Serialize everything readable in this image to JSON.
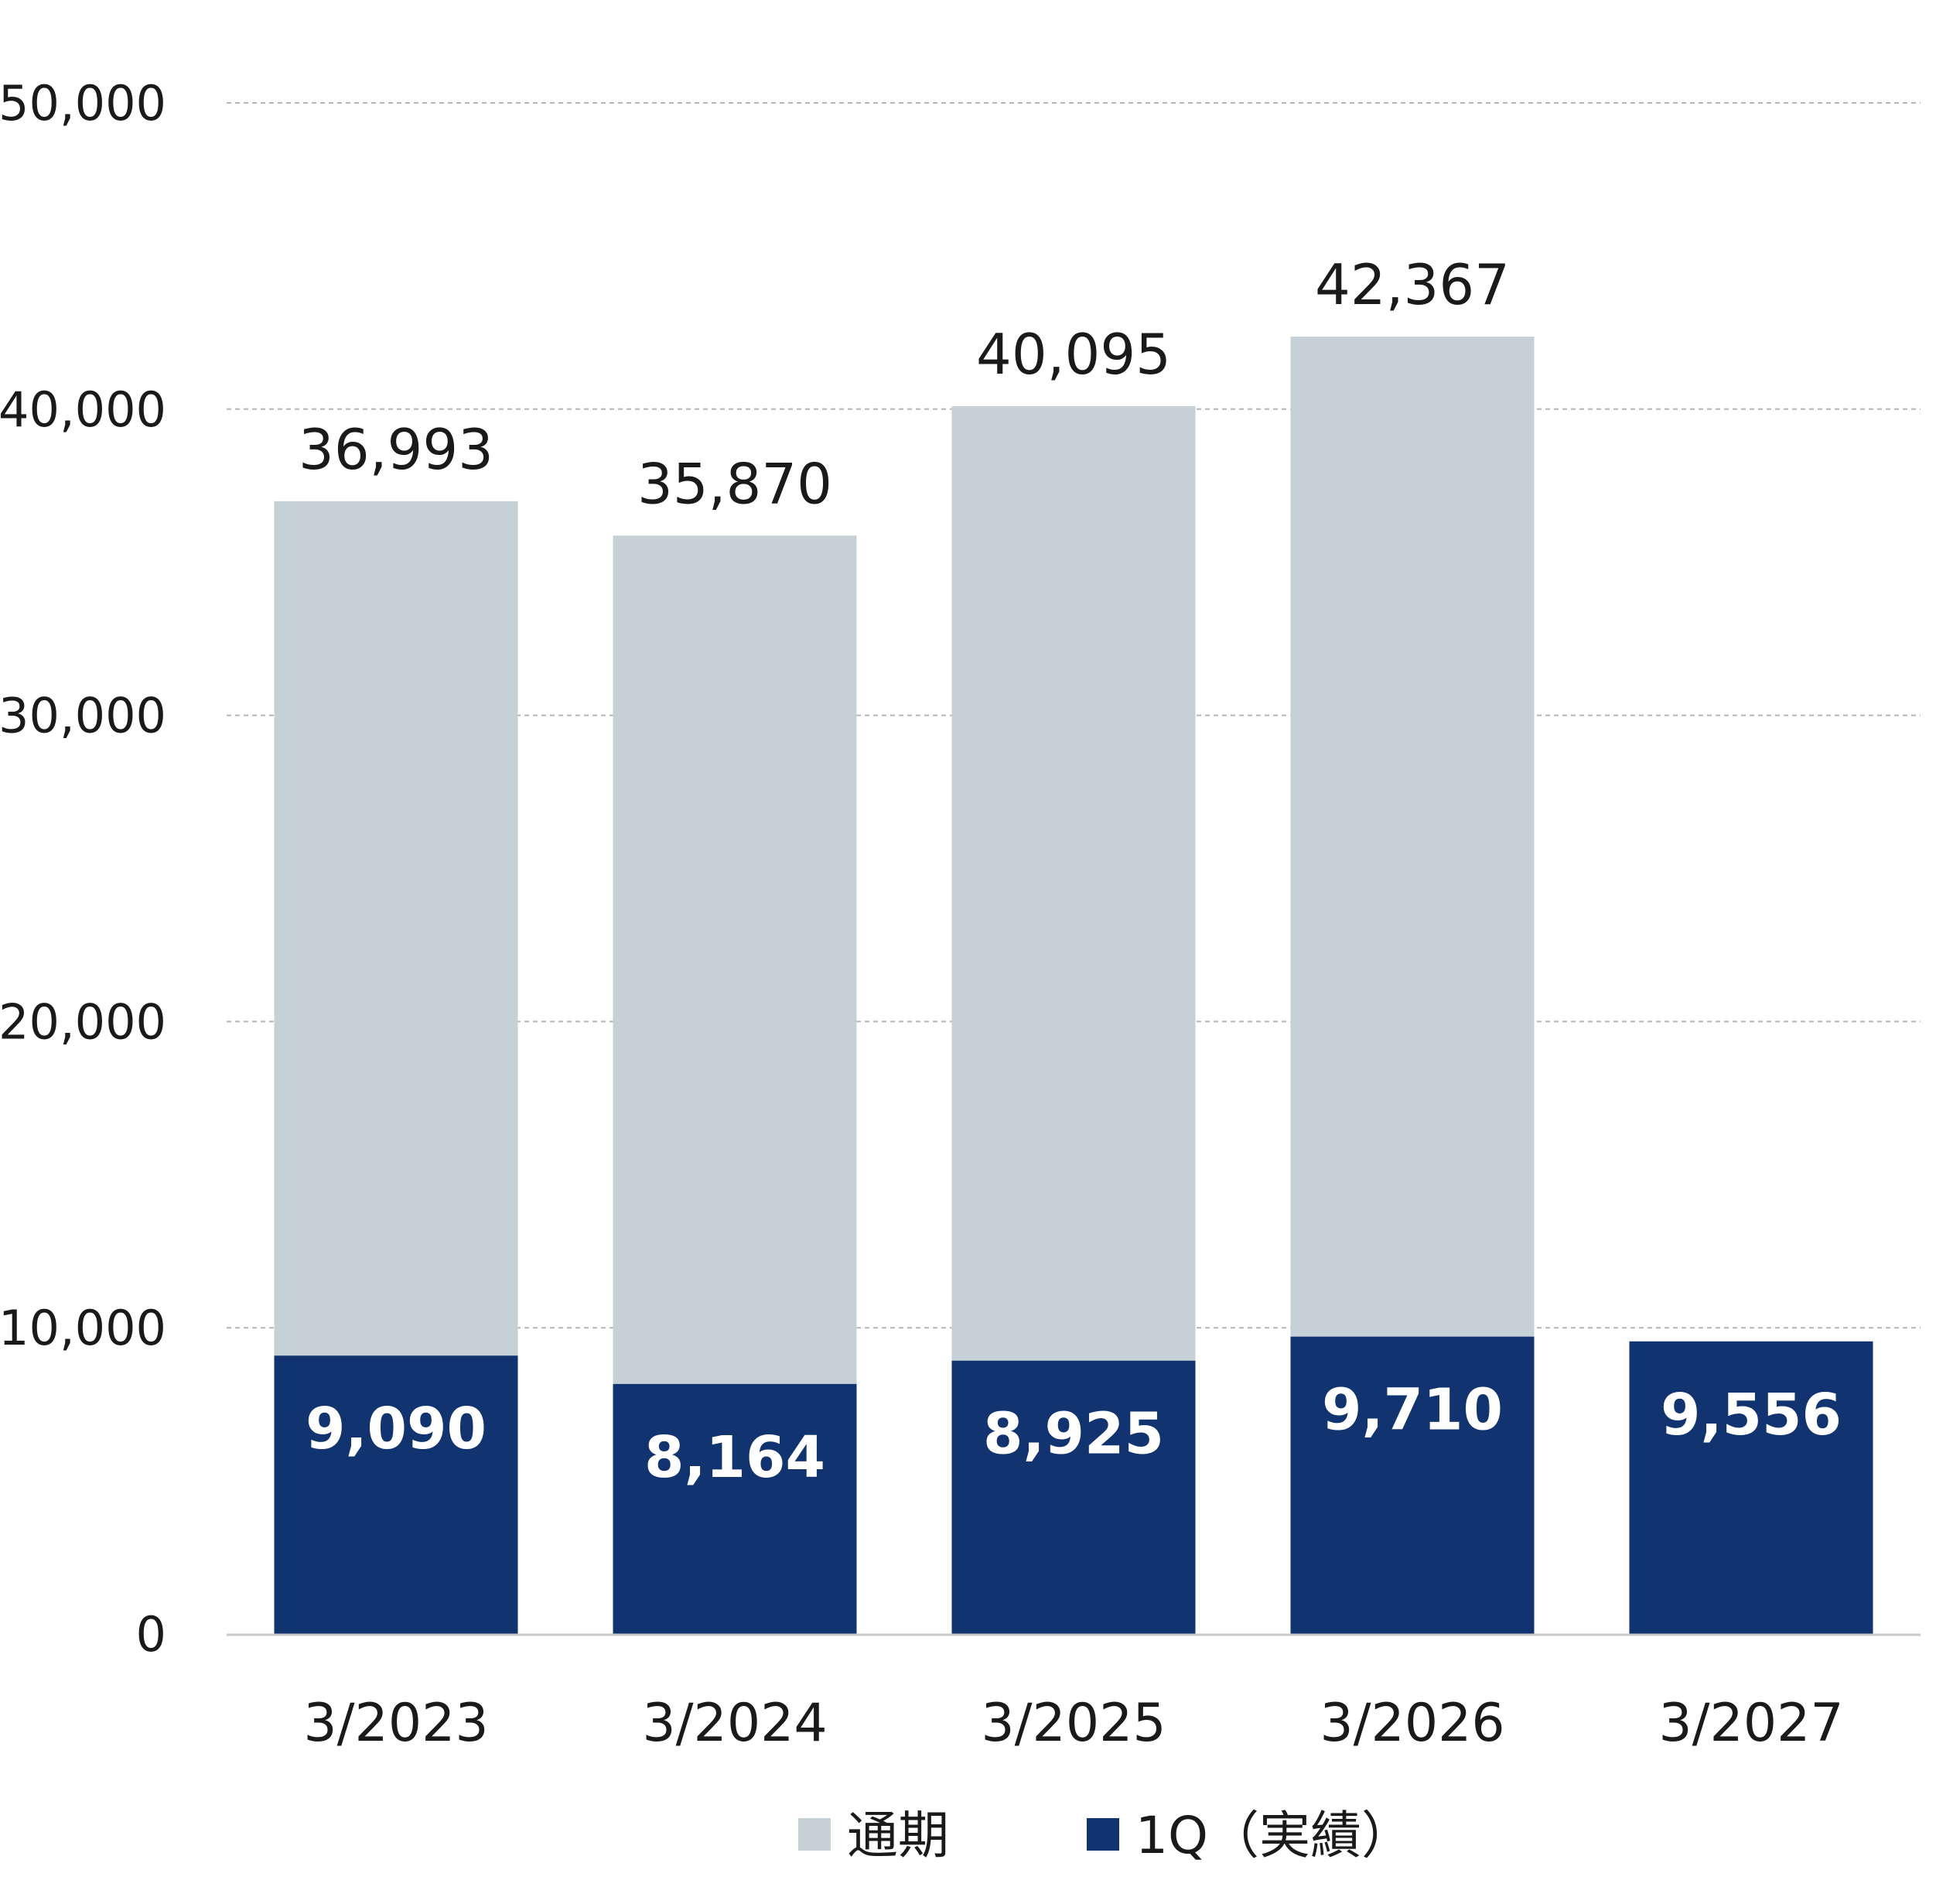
{
  "chart_data": {
    "type": "bar",
    "stacking": "overlay",
    "categories": [
      "3/2023",
      "3/2024",
      "3/2025",
      "3/2026",
      "3/2027"
    ],
    "series": [
      {
        "name": "通期",
        "values": [
          36993,
          35870,
          40095,
          42367,
          null
        ],
        "color": "#c5d0d7"
      },
      {
        "name": "1Q（実績）",
        "values": [
          9090,
          8164,
          8925,
          9710,
          9556
        ],
        "color": "#113370"
      }
    ],
    "labels": {
      "full_year": [
        "36,993",
        "35,870",
        "40,095",
        "42,367",
        ""
      ],
      "q1": [
        "9,090",
        "8,164",
        "8,925",
        "9,710",
        "9,556"
      ]
    },
    "y_ticks": [
      0,
      10000,
      20000,
      30000,
      40000,
      50000
    ],
    "y_tick_labels": [
      "0",
      "10,000",
      "20,000",
      "30,000",
      "40,000",
      "50,000"
    ],
    "ylim": [
      0,
      50000
    ],
    "grid": true,
    "legend_position": "bottom"
  }
}
